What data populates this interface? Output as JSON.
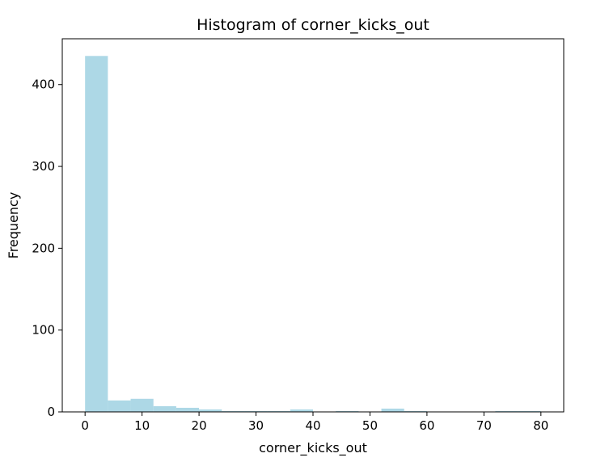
{
  "chart_data": {
    "type": "bar",
    "title": "Histogram of corner_kicks_out",
    "xlabel": "corner_kicks_out",
    "ylabel": "Frequency",
    "xlim": [
      -4,
      84
    ],
    "ylim": [
      0,
      456
    ],
    "xticks": [
      0,
      10,
      20,
      30,
      40,
      50,
      60,
      70,
      80
    ],
    "yticks": [
      0,
      100,
      200,
      300,
      400
    ],
    "bin_width": 4,
    "bins": [
      {
        "start": 0,
        "end": 4,
        "count": 435
      },
      {
        "start": 4,
        "end": 8,
        "count": 14
      },
      {
        "start": 8,
        "end": 12,
        "count": 16
      },
      {
        "start": 12,
        "end": 16,
        "count": 7
      },
      {
        "start": 16,
        "end": 20,
        "count": 5
      },
      {
        "start": 20,
        "end": 24,
        "count": 3
      },
      {
        "start": 24,
        "end": 28,
        "count": 1
      },
      {
        "start": 28,
        "end": 32,
        "count": 1
      },
      {
        "start": 32,
        "end": 36,
        "count": 1
      },
      {
        "start": 36,
        "end": 40,
        "count": 3
      },
      {
        "start": 40,
        "end": 44,
        "count": 0
      },
      {
        "start": 44,
        "end": 48,
        "count": 1
      },
      {
        "start": 48,
        "end": 52,
        "count": 0
      },
      {
        "start": 52,
        "end": 56,
        "count": 4
      },
      {
        "start": 56,
        "end": 60,
        "count": 1
      },
      {
        "start": 60,
        "end": 64,
        "count": 0
      },
      {
        "start": 64,
        "end": 68,
        "count": 0
      },
      {
        "start": 68,
        "end": 72,
        "count": 0
      },
      {
        "start": 72,
        "end": 76,
        "count": 1
      },
      {
        "start": 76,
        "end": 80,
        "count": 1
      }
    ],
    "bar_color": "#add8e6",
    "grid": false,
    "legend": "none"
  }
}
